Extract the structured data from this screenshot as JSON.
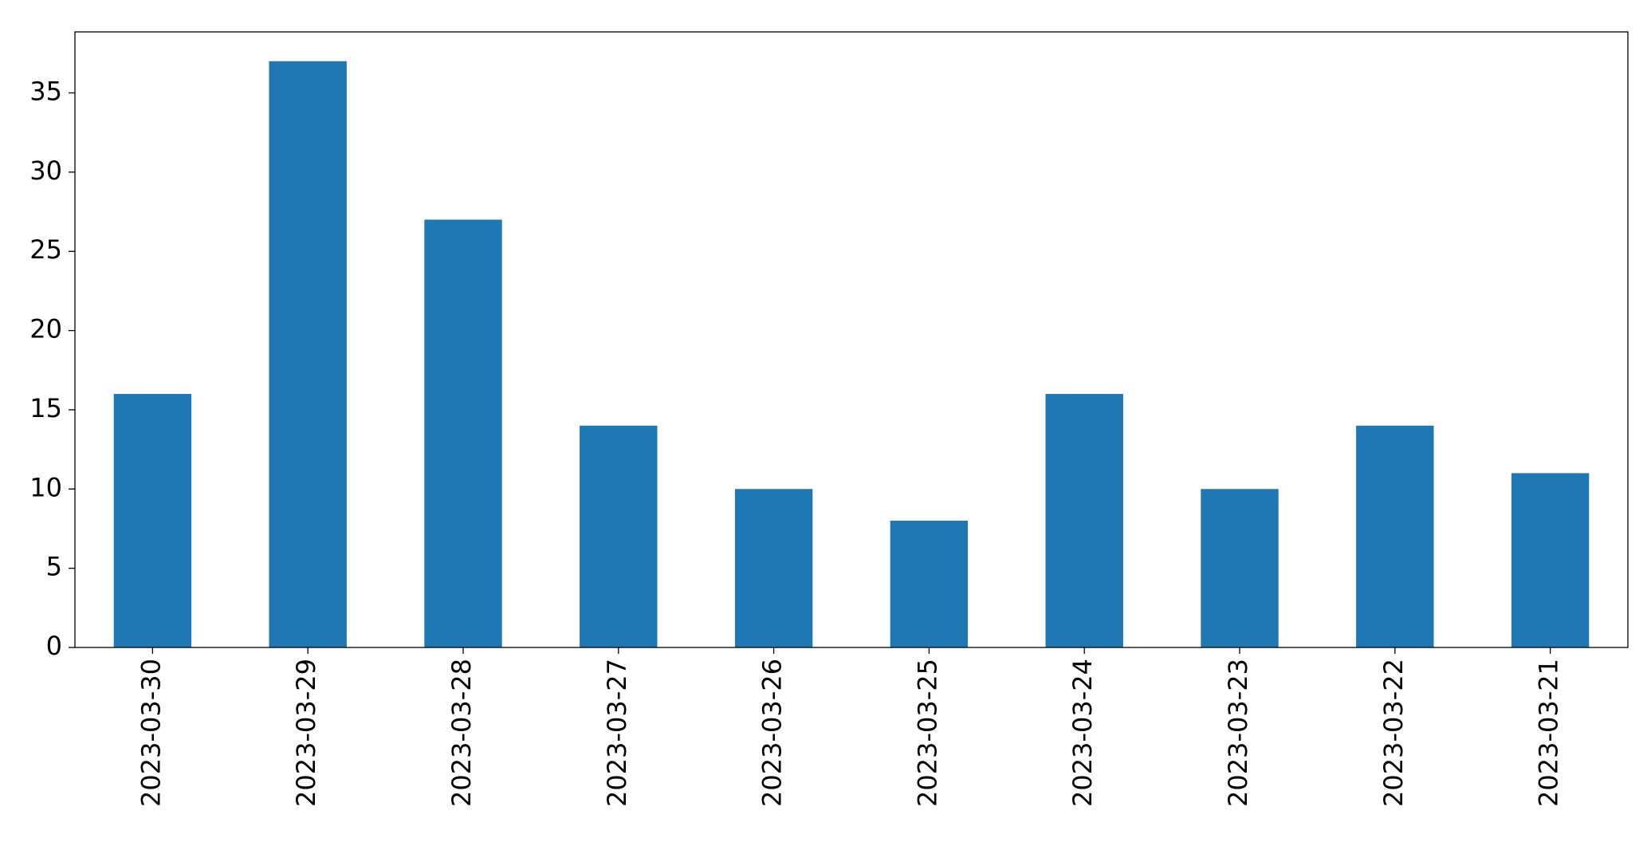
{
  "chart_data": {
    "type": "bar",
    "categories": [
      "2023-03-30",
      "2023-03-29",
      "2023-03-28",
      "2023-03-27",
      "2023-03-26",
      "2023-03-25",
      "2023-03-24",
      "2023-03-23",
      "2023-03-22",
      "2023-03-21"
    ],
    "values": [
      16,
      37,
      27,
      14,
      10,
      8,
      16,
      10,
      14,
      11
    ],
    "color": "#1f77b4",
    "ylim": [
      0,
      38.85
    ],
    "yticks": [
      0,
      5,
      10,
      15,
      20,
      25,
      30,
      35
    ],
    "grid": false
  }
}
